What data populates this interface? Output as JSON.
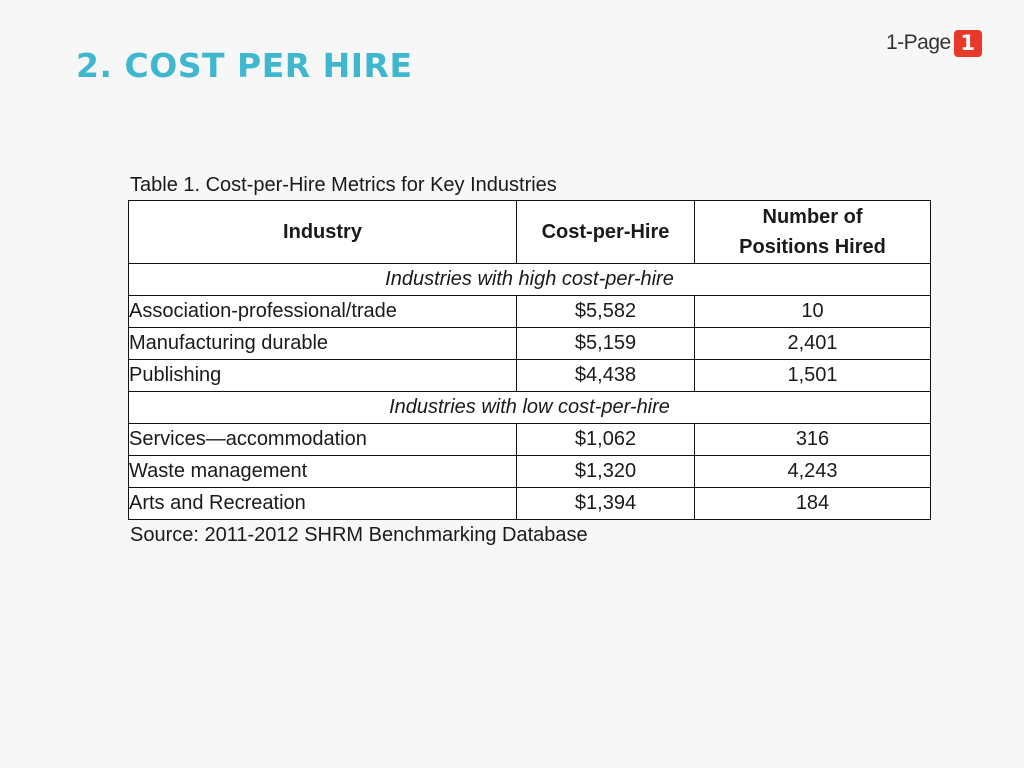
{
  "slide": {
    "title": "2. COST PER HIRE"
  },
  "logo": {
    "text": "1-Page",
    "badge": "1"
  },
  "table": {
    "caption": "Table 1. Cost-per-Hire Metrics for Key Industries",
    "headers": {
      "industry": "Industry",
      "cost": "Cost-per-Hire",
      "positions_line1": "Number of",
      "positions_line2": "Positions Hired"
    },
    "groups": [
      {
        "label": "Industries with high cost-per-hire",
        "rows": [
          {
            "industry": "Association-professional/trade",
            "cost": "$5,582",
            "positions": "10"
          },
          {
            "industry": "Manufacturing durable",
            "cost": "$5,159",
            "positions": "2,401"
          },
          {
            "industry": "Publishing",
            "cost": "$4,438",
            "positions": "1,501"
          }
        ]
      },
      {
        "label": "Industries with low cost-per-hire",
        "rows": [
          {
            "industry": "Services—accommodation",
            "cost": "$1,062",
            "positions": "316"
          },
          {
            "industry": "Waste management",
            "cost": "$1,320",
            "positions": "4,243"
          },
          {
            "industry": "Arts and Recreation",
            "cost": "$1,394",
            "positions": "184"
          }
        ]
      }
    ],
    "source": "Source: 2011-2012 SHRM Benchmarking Database"
  },
  "colors": {
    "title": "#3fb8cf",
    "logo_badge": "#e8392b",
    "background": "#f7f7f7"
  }
}
